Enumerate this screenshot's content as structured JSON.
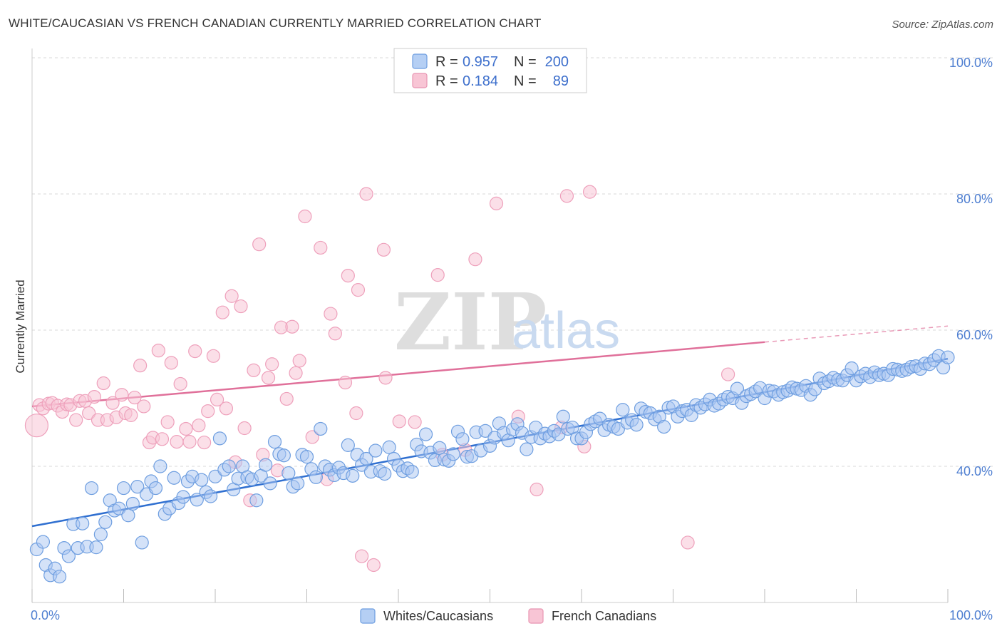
{
  "title": "WHITE/CAUCASIAN VS FRENCH CANADIAN CURRENTLY MARRIED CORRELATION CHART",
  "source": "Source: ZipAtlas.com",
  "watermark": {
    "zip": "ZIP",
    "atlas": "atlas"
  },
  "legend": {
    "rows": [
      {
        "r_label": "R =",
        "r_value": "0.957",
        "n_label": "N =",
        "n_value": "200"
      },
      {
        "r_label": "R =",
        "r_value": "0.184",
        "n_label": "N =",
        "n_value": "89"
      }
    ]
  },
  "bottom_legend": [
    "Whites/Caucasians",
    "French Canadians"
  ],
  "colors": {
    "blue": "#4f8fe0",
    "blue_line": "#2f6fd0",
    "pink": "#ef8fb0",
    "pink_line": "#e0709a",
    "grid": "#d8d8d8"
  },
  "chart_data": {
    "type": "scatter",
    "title": "WHITE/CAUCASIAN VS FRENCH CANADIAN CURRENTLY MARRIED CORRELATION CHART",
    "xlabel": "",
    "ylabel": "Currently Married",
    "xlim": [
      0,
      100
    ],
    "ylim": [
      20,
      102
    ],
    "x_tick_labels": [
      "0.0%",
      "100.0%"
    ],
    "y_ticks": [
      40,
      60,
      80,
      100
    ],
    "y_tick_labels": [
      "40.0%",
      "60.0%",
      "80.0%",
      "100.0%"
    ],
    "grid": true,
    "legend_position": "top-center",
    "series": [
      {
        "name": "Whites/Caucasians",
        "color": "#4f8fe0",
        "r": 0.957,
        "n": 200,
        "trend": {
          "x": [
            0,
            100
          ],
          "y": [
            31.2,
            55.8
          ],
          "dashed_from": null
        },
        "points": [
          [
            0.5,
            27.8
          ],
          [
            1.2,
            28.9
          ],
          [
            1.5,
            25.5
          ],
          [
            2,
            24
          ],
          [
            2.5,
            25
          ],
          [
            3,
            23.8
          ],
          [
            3.5,
            28
          ],
          [
            4,
            26.8
          ],
          [
            4.5,
            31.5
          ],
          [
            5,
            28
          ],
          [
            5.5,
            31.6
          ],
          [
            6,
            28.2
          ],
          [
            6.5,
            36.8
          ],
          [
            7,
            28.1
          ],
          [
            7.5,
            30
          ],
          [
            8,
            31.8
          ],
          [
            8.5,
            35
          ],
          [
            9,
            33.5
          ],
          [
            9.5,
            33.8
          ],
          [
            10,
            36.8
          ],
          [
            10.5,
            32.8
          ],
          [
            11,
            34.5
          ],
          [
            11.5,
            37
          ],
          [
            12,
            28.8
          ],
          [
            12.5,
            35.9
          ],
          [
            13,
            37.8
          ],
          [
            13.5,
            36.8
          ],
          [
            14,
            40
          ],
          [
            14.5,
            33
          ],
          [
            15,
            33.8
          ],
          [
            15.5,
            38.3
          ],
          [
            16,
            34.6
          ],
          [
            16.5,
            35.5
          ],
          [
            17,
            37.8
          ],
          [
            17.5,
            38.5
          ],
          [
            18,
            35.1
          ],
          [
            18.5,
            38
          ],
          [
            19,
            36.2
          ],
          [
            19.5,
            35.6
          ],
          [
            20,
            38.5
          ],
          [
            20.5,
            44.1
          ],
          [
            21,
            39.5
          ],
          [
            21.5,
            40
          ],
          [
            22,
            36.6
          ],
          [
            22.5,
            38.2
          ],
          [
            23,
            40
          ],
          [
            23.5,
            38.4
          ],
          [
            24,
            38.1
          ],
          [
            24.5,
            35
          ],
          [
            25,
            38.6
          ],
          [
            25.5,
            40.2
          ],
          [
            26,
            37.5
          ],
          [
            26.5,
            43.6
          ],
          [
            27,
            41.8
          ],
          [
            27.5,
            41.6
          ],
          [
            28,
            39
          ],
          [
            28.5,
            37
          ],
          [
            29,
            37.5
          ],
          [
            29.5,
            41.7
          ],
          [
            30,
            41.4
          ],
          [
            30.5,
            39.6
          ],
          [
            31,
            38.4
          ],
          [
            31.5,
            45.5
          ],
          [
            32,
            40
          ],
          [
            32.5,
            39.5
          ],
          [
            33,
            38.7
          ],
          [
            33.5,
            39.8
          ],
          [
            34,
            39
          ],
          [
            34.5,
            43.1
          ],
          [
            35,
            38.6
          ],
          [
            35.5,
            41.7
          ],
          [
            36,
            40.2
          ],
          [
            36.5,
            41.1
          ],
          [
            37,
            39.2
          ],
          [
            37.5,
            42.3
          ],
          [
            38,
            39.3
          ],
          [
            38.5,
            38.9
          ],
          [
            39,
            42.8
          ],
          [
            39.5,
            41.1
          ],
          [
            40,
            40.1
          ],
          [
            40.5,
            39.3
          ],
          [
            41,
            39.7
          ],
          [
            41.5,
            39.2
          ],
          [
            42,
            43.2
          ],
          [
            42.5,
            42.2
          ],
          [
            43,
            44.7
          ],
          [
            43.5,
            42
          ],
          [
            44,
            40.9
          ],
          [
            44.5,
            42.7
          ],
          [
            45,
            41
          ],
          [
            45.5,
            40.8
          ],
          [
            46,
            41.8
          ],
          [
            46.5,
            45.1
          ],
          [
            47,
            44
          ],
          [
            47.5,
            41.4
          ],
          [
            48,
            41.5
          ],
          [
            48.5,
            45
          ],
          [
            49,
            42.3
          ],
          [
            49.5,
            45.2
          ],
          [
            50,
            43
          ],
          [
            50.5,
            44.2
          ],
          [
            51,
            46.3
          ],
          [
            51.5,
            44.9
          ],
          [
            52,
            43.8
          ],
          [
            52.5,
            45.4
          ],
          [
            53,
            46.2
          ],
          [
            53.5,
            44.9
          ],
          [
            54,
            42.5
          ],
          [
            54.5,
            44.3
          ],
          [
            55,
            45.7
          ],
          [
            55.5,
            44.1
          ],
          [
            56,
            44.8
          ],
          [
            56.5,
            44.4
          ],
          [
            57,
            45.2
          ],
          [
            57.5,
            44.7
          ],
          [
            58,
            47.3
          ],
          [
            58.5,
            45.5
          ],
          [
            59,
            45.7
          ],
          [
            59.5,
            44.1
          ],
          [
            60,
            44.1
          ],
          [
            60.5,
            45
          ],
          [
            61,
            46.2
          ],
          [
            61.5,
            46.6
          ],
          [
            62,
            47
          ],
          [
            62.5,
            45.3
          ],
          [
            63,
            46.1
          ],
          [
            63.5,
            45.8
          ],
          [
            64,
            45.5
          ],
          [
            64.5,
            48.3
          ],
          [
            65,
            46.4
          ],
          [
            65.5,
            46.8
          ],
          [
            66,
            46.1
          ],
          [
            66.5,
            48.5
          ],
          [
            67,
            48
          ],
          [
            67.5,
            47.8
          ],
          [
            68,
            46.9
          ],
          [
            68.5,
            47.3
          ],
          [
            69,
            45.8
          ],
          [
            69.5,
            48.6
          ],
          [
            70,
            48.8
          ],
          [
            70.5,
            47.3
          ],
          [
            71,
            48.1
          ],
          [
            71.5,
            48.3
          ],
          [
            72,
            47.5
          ],
          [
            72.5,
            49
          ],
          [
            73,
            48.6
          ],
          [
            73.5,
            49.1
          ],
          [
            74,
            49.8
          ],
          [
            74.5,
            48.9
          ],
          [
            75,
            49.2
          ],
          [
            75.5,
            49.8
          ],
          [
            76,
            50.2
          ],
          [
            76.5,
            50
          ],
          [
            77,
            51.4
          ],
          [
            77.5,
            49.3
          ],
          [
            78,
            50.3
          ],
          [
            78.5,
            50.6
          ],
          [
            79,
            51
          ],
          [
            79.5,
            51.5
          ],
          [
            80,
            50
          ],
          [
            80.5,
            51.1
          ],
          [
            81,
            51
          ],
          [
            81.5,
            50.5
          ],
          [
            82,
            50.9
          ],
          [
            82.5,
            51.1
          ],
          [
            83,
            51.6
          ],
          [
            83.5,
            51.4
          ],
          [
            84,
            51.2
          ],
          [
            84.5,
            51.8
          ],
          [
            85,
            50.5
          ],
          [
            85.5,
            51.3
          ],
          [
            86,
            52.9
          ],
          [
            86.5,
            52.2
          ],
          [
            87,
            52.5
          ],
          [
            87.5,
            53
          ],
          [
            88,
            52.7
          ],
          [
            88.5,
            52.6
          ],
          [
            89,
            53.4
          ],
          [
            89.5,
            54.4
          ],
          [
            90,
            52.6
          ],
          [
            90.5,
            53.2
          ],
          [
            91,
            53.6
          ],
          [
            91.5,
            53.1
          ],
          [
            92,
            53.8
          ],
          [
            92.5,
            53.4
          ],
          [
            93,
            53.6
          ],
          [
            93.5,
            53.4
          ],
          [
            94,
            54.3
          ],
          [
            94.5,
            54.2
          ],
          [
            95,
            54
          ],
          [
            95.5,
            54.2
          ],
          [
            96,
            54.6
          ],
          [
            96.5,
            54.7
          ],
          [
            97,
            54.3
          ],
          [
            97.5,
            55.1
          ],
          [
            98,
            55
          ],
          [
            98.5,
            55.6
          ],
          [
            99,
            56.2
          ],
          [
            99.5,
            54.5
          ],
          [
            100,
            56
          ]
        ]
      },
      {
        "name": "French Canadians",
        "color": "#ef8fb0",
        "r": 0.184,
        "n": 89,
        "trend": {
          "x": [
            0,
            100
          ],
          "y": [
            48.8,
            60.6
          ],
          "dashed_from": 80
        },
        "points": [
          [
            0.5,
            46
          ],
          [
            0.8,
            49
          ],
          [
            1.2,
            48.5
          ],
          [
            1.8,
            49.2
          ],
          [
            2.2,
            49.3
          ],
          [
            2.8,
            48.9
          ],
          [
            3.3,
            48
          ],
          [
            3.8,
            49.1
          ],
          [
            4.2,
            49
          ],
          [
            4.8,
            46.8
          ],
          [
            5.2,
            49.6
          ],
          [
            5.8,
            49.6
          ],
          [
            6.2,
            47.8
          ],
          [
            6.8,
            50.2
          ],
          [
            7.2,
            46.8
          ],
          [
            7.8,
            52.2
          ],
          [
            8.2,
            46.8
          ],
          [
            8.8,
            49.3
          ],
          [
            9.2,
            47.2
          ],
          [
            9.8,
            50.5
          ],
          [
            10.2,
            47.8
          ],
          [
            10.8,
            47.5
          ],
          [
            11.2,
            50.1
          ],
          [
            11.8,
            54.8
          ],
          [
            12.2,
            48.8
          ],
          [
            12.8,
            43.5
          ],
          [
            13.2,
            44.2
          ],
          [
            13.8,
            57
          ],
          [
            14.2,
            44
          ],
          [
            14.8,
            46.5
          ],
          [
            15.2,
            55.2
          ],
          [
            15.8,
            43.6
          ],
          [
            16.2,
            52.1
          ],
          [
            16.8,
            45.5
          ],
          [
            17.2,
            43.6
          ],
          [
            17.8,
            56.9
          ],
          [
            18.2,
            46
          ],
          [
            18.8,
            43.5
          ],
          [
            19.2,
            48.1
          ],
          [
            19.8,
            56.2
          ],
          [
            20.2,
            49.8
          ],
          [
            20.8,
            62.6
          ],
          [
            21.2,
            48.5
          ],
          [
            21.8,
            65
          ],
          [
            22.2,
            40.6
          ],
          [
            22.8,
            63.5
          ],
          [
            23.2,
            45.6
          ],
          [
            23.8,
            35
          ],
          [
            24.2,
            54.1
          ],
          [
            24.8,
            72.6
          ],
          [
            25.2,
            41.7
          ],
          [
            25.8,
            53
          ],
          [
            26.2,
            55
          ],
          [
            26.8,
            39.4
          ],
          [
            27.2,
            60.4
          ],
          [
            27.8,
            49.9
          ],
          [
            28.4,
            60.5
          ],
          [
            28.8,
            53.7
          ],
          [
            29.2,
            55.5
          ],
          [
            29.8,
            76.7
          ],
          [
            30.6,
            44.3
          ],
          [
            31.5,
            72.1
          ],
          [
            32.2,
            38.1
          ],
          [
            32.6,
            62.4
          ],
          [
            33.1,
            59.5
          ],
          [
            34.2,
            52.3
          ],
          [
            34.5,
            68
          ],
          [
            35.4,
            47.8
          ],
          [
            35.6,
            65.9
          ],
          [
            36,
            26.8
          ],
          [
            36.5,
            80
          ],
          [
            37.3,
            25.5
          ],
          [
            38.4,
            71.8
          ],
          [
            38.6,
            53
          ],
          [
            40.1,
            46.6
          ],
          [
            41.8,
            46.5
          ],
          [
            44.3,
            68.1
          ],
          [
            44.8,
            41.7
          ],
          [
            47.3,
            42.4
          ],
          [
            48.4,
            70.4
          ],
          [
            50.7,
            78.6
          ],
          [
            53.1,
            47.3
          ],
          [
            55.1,
            36.6
          ],
          [
            57.8,
            45.7
          ],
          [
            58.4,
            79.7
          ],
          [
            60.3,
            42.9
          ],
          [
            60.9,
            80.3
          ],
          [
            71.6,
            28.8
          ],
          [
            76,
            53.5
          ]
        ]
      }
    ]
  }
}
